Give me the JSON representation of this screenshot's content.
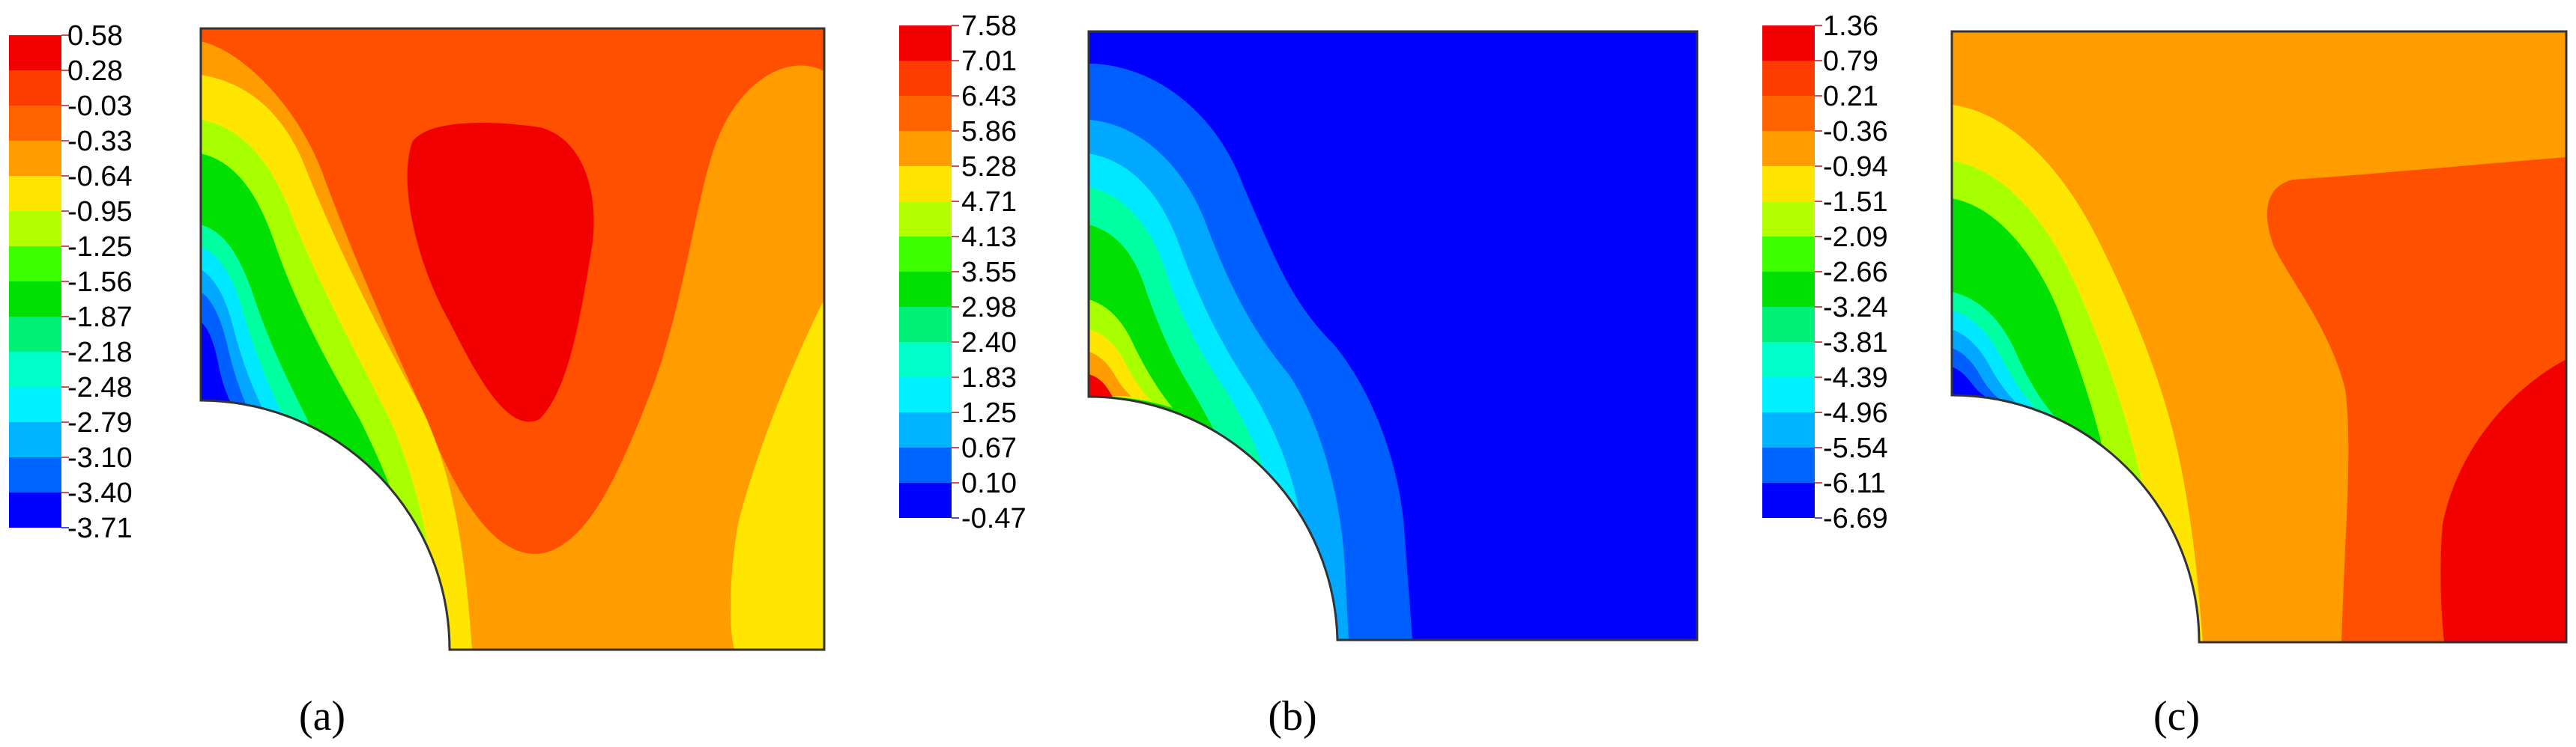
{
  "panels": [
    {
      "id": "a",
      "caption": "(a)",
      "legend": [
        "0.58",
        "0.28",
        "-0.03",
        "-0.33",
        "-0.64",
        "-0.95",
        "-1.25",
        "-1.56",
        "-1.87",
        "-2.18",
        "-2.48",
        "-2.79",
        "-3.10",
        "-3.40",
        "-3.71"
      ]
    },
    {
      "id": "b",
      "caption": "(b)",
      "legend": [
        "7.58",
        "7.01",
        "6.43",
        "5.86",
        "5.28",
        "4.71",
        "4.13",
        "3.55",
        "2.98",
        "2.40",
        "1.83",
        "1.25",
        "0.67",
        "0.10",
        "-0.47"
      ]
    },
    {
      "id": "c",
      "caption": "(c)",
      "legend": [
        "1.36",
        "0.79",
        "0.21",
        "-0.36",
        "-0.94",
        "-1.51",
        "-2.09",
        "-2.66",
        "-3.24",
        "-3.81",
        "-4.39",
        "-4.96",
        "-5.54",
        "-6.11",
        "-6.69"
      ]
    }
  ],
  "colors": {
    "scale": [
      "#f20000",
      "#ff5000",
      "#ff9c00",
      "#ffe600",
      "#a8ff00",
      "#00e000",
      "#00f040",
      "#00ffa0",
      "#00ffd8",
      "#00e8ff",
      "#00a8ff",
      "#0060ff",
      "#0000ff"
    ],
    "swatches": [
      "#f20000",
      "#ff3c00",
      "#ff6400",
      "#ff9c00",
      "#ffe600",
      "#b4ff00",
      "#3cff00",
      "#00e000",
      "#00f078",
      "#00ffc8",
      "#00f0ff",
      "#00b4ff",
      "#0064ff",
      "#0000ff"
    ]
  }
}
